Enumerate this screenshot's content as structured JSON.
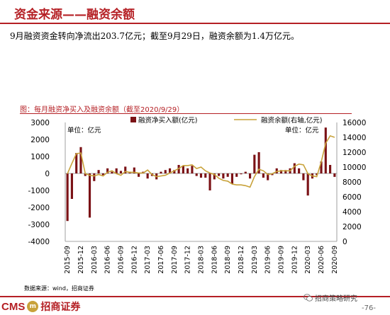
{
  "header": {
    "title": "资金来源——融资余额",
    "summary": "9月融资资金转向净流出203.7亿元；截至9月29日，融资余额为1.4万亿元。"
  },
  "chart_data": {
    "type": "bar",
    "title": "图：每月融资净买入及融资余额（截至2020/9/29）",
    "unit_left": "单位：亿元",
    "unit_right": "单位：亿元",
    "x_tick_labels": [
      "2015-09",
      "2015-12",
      "2016-03",
      "2016-06",
      "2016-09",
      "2016-12",
      "2017-03",
      "2017-06",
      "2017-09",
      "2017-12",
      "2018-03",
      "2018-06",
      "2018-09",
      "2018-12",
      "2019-03",
      "2019-06",
      "2019-09",
      "2019-12",
      "2020-03",
      "2020-06",
      "2020-09"
    ],
    "categories": [
      "2015-09",
      "2015-10",
      "2015-11",
      "2015-12",
      "2016-01",
      "2016-02",
      "2016-03",
      "2016-04",
      "2016-05",
      "2016-06",
      "2016-07",
      "2016-08",
      "2016-09",
      "2016-10",
      "2016-11",
      "2016-12",
      "2017-01",
      "2017-02",
      "2017-03",
      "2017-04",
      "2017-05",
      "2017-06",
      "2017-07",
      "2017-08",
      "2017-09",
      "2017-10",
      "2017-11",
      "2017-12",
      "2018-01",
      "2018-02",
      "2018-03",
      "2018-04",
      "2018-05",
      "2018-06",
      "2018-07",
      "2018-08",
      "2018-09",
      "2018-10",
      "2018-11",
      "2018-12",
      "2019-01",
      "2019-02",
      "2019-03",
      "2019-04",
      "2019-05",
      "2019-06",
      "2019-07",
      "2019-08",
      "2019-09",
      "2019-10",
      "2019-11",
      "2019-12",
      "2020-01",
      "2020-02",
      "2020-03",
      "2020-04",
      "2020-05",
      "2020-06",
      "2020-07",
      "2020-08",
      "2020-09"
    ],
    "y_left": {
      "min": -4000,
      "max": 3000,
      "ticks": [
        -4000,
        -3000,
        -2000,
        -1000,
        0,
        1000,
        2000,
        3000
      ]
    },
    "y_right": {
      "min": 0,
      "max": 16000,
      "ticks": [
        0,
        2000,
        4000,
        6000,
        8000,
        10000,
        12000,
        14000,
        16000
      ]
    },
    "series": [
      {
        "name": "融资净买入额(亿元)",
        "axis": "left",
        "kind": "bar",
        "color": "#7b1216",
        "values": [
          -2800,
          -1500,
          1200,
          1550,
          -150,
          -2600,
          -450,
          200,
          -100,
          300,
          100,
          300,
          150,
          400,
          100,
          350,
          -200,
          100,
          -300,
          -150,
          -350,
          100,
          200,
          300,
          200,
          500,
          450,
          300,
          450,
          -150,
          -250,
          -250,
          -1000,
          -350,
          -150,
          -300,
          -200,
          -600,
          -200,
          -50,
          100,
          -300,
          1100,
          1250,
          -250,
          -400,
          -100,
          300,
          200,
          200,
          300,
          600,
          300,
          -400,
          -1300,
          -300,
          -100,
          700,
          2700,
          500,
          -203.7
        ]
      },
      {
        "name": "融资余额(右轴,亿元)",
        "axis": "right",
        "kind": "line",
        "color": "#c8a23a",
        "values": [
          9100,
          10500,
          11800,
          11900,
          9100,
          8900,
          8800,
          9000,
          8800,
          9300,
          9500,
          9100,
          8900,
          9400,
          9300,
          9300,
          9200,
          9200,
          9600,
          9000,
          8700,
          8800,
          8900,
          9200,
          9500,
          9800,
          10200,
          10200,
          10300,
          9800,
          10000,
          9500,
          9200,
          9000,
          8500,
          8200,
          8100,
          7700,
          7600,
          7600,
          7500,
          7300,
          8700,
          9700,
          9500,
          9000,
          9100,
          9400,
          9500,
          9500,
          9500,
          10100,
          10400,
          10300,
          9100,
          8800,
          8700,
          10700,
          13200,
          14200,
          14000
        ]
      }
    ]
  },
  "footer": {
    "source": "数据来源：wind，招商证券",
    "logo_text": "CMS",
    "logo_mark": "m",
    "logo_cn": "招商证券",
    "wechat": "招商策略研究",
    "page": "-76-"
  }
}
